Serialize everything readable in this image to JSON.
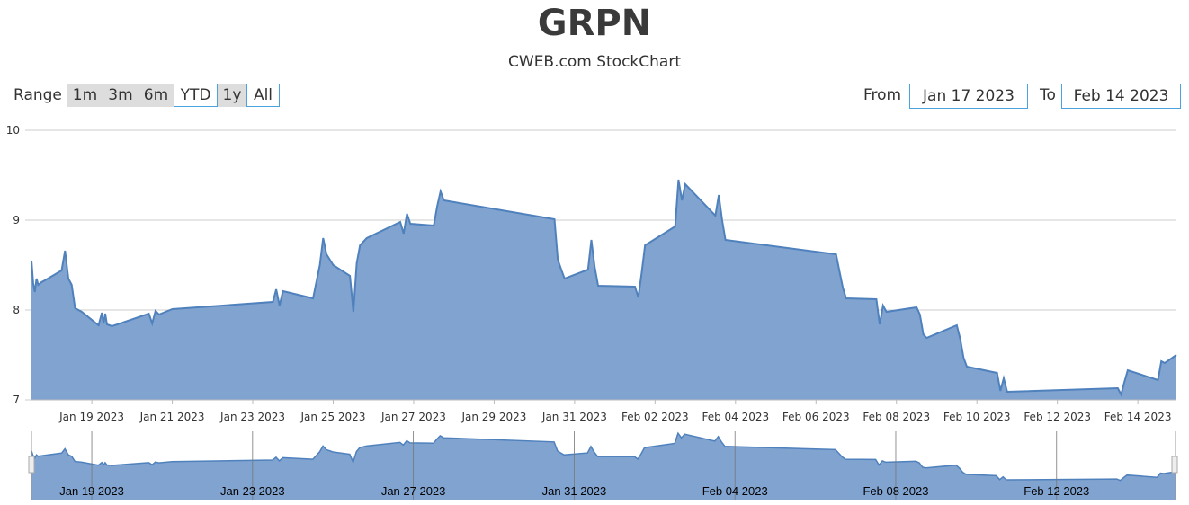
{
  "title": "GRPN",
  "subtitle": "CWEB.com StockChart",
  "range_selector": {
    "label": "Range",
    "buttons": [
      "1m",
      "3m",
      "6m",
      "YTD",
      "1y",
      "All"
    ],
    "selected": [
      "YTD",
      "All"
    ]
  },
  "date_range": {
    "from_label": "From",
    "from_value": "Jan 17 2023",
    "to_label": "To",
    "to_value": "Feb 14 2023"
  },
  "colors": {
    "area_fill": "#81a3d0",
    "area_line": "#4f81bd",
    "grid": "#cccccc",
    "button_bg": "#dddddd",
    "button_selected_border": "#4aa3df"
  },
  "chart_data": {
    "type": "area",
    "ylim": [
      7,
      10
    ],
    "y_ticks": [
      "7",
      "8",
      "9",
      "10"
    ],
    "x_range": [
      "2023-01-17 12:00",
      "2023-02-14 23:00"
    ],
    "x_ticks": [
      "Jan 19 2023",
      "Jan 21 2023",
      "Jan 23 2023",
      "Jan 25 2023",
      "Jan 27 2023",
      "Jan 29 2023",
      "Jan 31 2023",
      "Feb 02 2023",
      "Feb 04 2023",
      "Feb 06 2023",
      "Feb 08 2023",
      "Feb 10 2023",
      "Feb 12 2023",
      "Feb 14 2023"
    ],
    "navigator_ticks": [
      "Jan 19 2023",
      "Jan 23 2023",
      "Jan 27 2023",
      "Jan 31 2023",
      "Feb 04 2023",
      "Feb 08 2023",
      "Feb 12 2023"
    ],
    "grid": true,
    "series": [
      {
        "x": [
          "2023-01-17 12:00",
          "2023-01-17 13:00",
          "2023-01-17 14:00",
          "2023-01-17 15:00",
          "2023-01-17 16:00",
          "2023-01-17 18:00",
          "2023-01-17 20:00",
          "2023-01-18 06:00",
          "2023-01-18 08:00",
          "2023-01-18 10:00",
          "2023-01-18 12:00",
          "2023-01-18 14:00",
          "2023-01-18 18:00",
          "2023-01-19 04:00",
          "2023-01-19 06:00",
          "2023-01-19 07:00",
          "2023-01-19 08:00",
          "2023-01-19 09:00",
          "2023-01-19 12:00",
          "2023-01-20 10:00",
          "2023-01-20 12:00",
          "2023-01-20 14:00",
          "2023-01-20 16:00",
          "2023-01-21 00:00",
          "2023-01-23 12:00",
          "2023-01-23 14:00",
          "2023-01-23 16:00",
          "2023-01-23 18:00",
          "2023-01-24 12:00",
          "2023-01-24 16:00",
          "2023-01-24 18:00",
          "2023-01-24 20:00",
          "2023-01-25 00:00",
          "2023-01-25 10:00",
          "2023-01-25 12:00",
          "2023-01-25 14:00",
          "2023-01-25 16:00",
          "2023-01-25 20:00",
          "2023-01-26 16:00",
          "2023-01-26 18:00",
          "2023-01-26 20:00",
          "2023-01-26 22:00",
          "2023-01-27 12:00",
          "2023-01-27 14:00",
          "2023-01-27 16:00",
          "2023-01-27 18:00",
          "2023-01-30 12:00",
          "2023-01-30 14:00",
          "2023-01-30 16:00",
          "2023-01-30 18:00",
          "2023-01-31 08:00",
          "2023-01-31 10:00",
          "2023-01-31 12:00",
          "2023-01-31 14:00",
          "2023-02-01 12:00",
          "2023-02-01 14:00",
          "2023-02-01 16:00",
          "2023-02-01 18:00",
          "2023-02-02 12:00",
          "2023-02-02 14:00",
          "2023-02-02 16:00",
          "2023-02-02 18:00",
          "2023-02-03 12:00",
          "2023-02-03 14:00",
          "2023-02-03 16:00",
          "2023-02-03 18:00",
          "2023-02-06 12:00",
          "2023-02-06 14:00",
          "2023-02-06 16:00",
          "2023-02-06 18:00",
          "2023-02-07 12:00",
          "2023-02-07 14:00",
          "2023-02-07 16:00",
          "2023-02-07 18:00",
          "2023-02-08 12:00",
          "2023-02-08 14:00",
          "2023-02-08 16:00",
          "2023-02-08 18:00",
          "2023-02-09 12:00",
          "2023-02-09 14:00",
          "2023-02-09 16:00",
          "2023-02-09 18:00",
          "2023-02-10 12:00",
          "2023-02-10 14:00",
          "2023-02-10 16:00",
          "2023-02-10 18:00",
          "2023-02-13 12:00",
          "2023-02-13 14:00",
          "2023-02-13 16:00",
          "2023-02-13 18:00",
          "2023-02-14 12:00",
          "2023-02-14 14:00",
          "2023-02-14 16:00",
          "2023-02-14 23:00"
        ],
        "values": [
          8.55,
          8.3,
          8.2,
          8.35,
          8.28,
          8.31,
          8.33,
          8.44,
          8.66,
          8.35,
          8.28,
          8.02,
          7.98,
          7.83,
          7.97,
          7.85,
          7.96,
          7.84,
          7.82,
          7.96,
          7.85,
          7.99,
          7.95,
          8.01,
          8.09,
          8.23,
          8.05,
          8.21,
          8.13,
          8.5,
          8.8,
          8.62,
          8.5,
          8.38,
          7.98,
          8.52,
          8.72,
          8.8,
          8.98,
          8.85,
          9.07,
          8.96,
          8.94,
          9.15,
          9.32,
          9.22,
          9.01,
          8.56,
          8.45,
          8.35,
          8.45,
          8.78,
          8.48,
          8.27,
          8.26,
          8.14,
          8.41,
          8.72,
          8.93,
          9.45,
          9.22,
          9.4,
          9.05,
          9.28,
          9.0,
          8.78,
          8.62,
          8.43,
          8.25,
          8.13,
          8.12,
          7.84,
          8.05,
          7.98,
          8.03,
          7.95,
          7.73,
          7.69,
          7.83,
          7.68,
          7.47,
          7.37,
          7.3,
          7.1,
          7.24,
          7.09,
          7.13,
          7.06,
          7.2,
          7.33,
          7.22,
          7.43,
          7.41,
          7.5
        ]
      }
    ]
  }
}
